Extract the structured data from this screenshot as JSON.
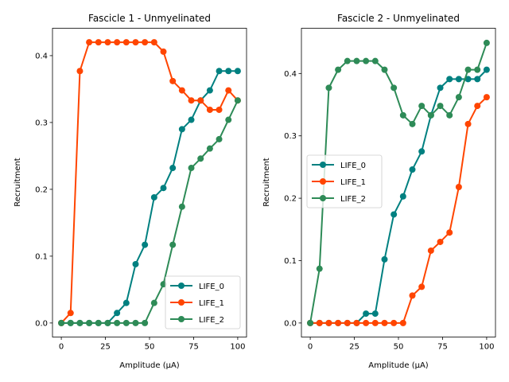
{
  "chart_data": [
    {
      "type": "line",
      "title": "Fascicle 1 - Unmyelinated",
      "xlabel": "Amplitude (µA)",
      "ylabel": "Recruitment",
      "xlim": [
        -5,
        105
      ],
      "ylim": [
        -0.021,
        0.441
      ],
      "xticks": [
        0,
        25,
        50,
        75,
        100
      ],
      "yticks": [
        0.0,
        0.1,
        0.2,
        0.3,
        0.4
      ],
      "ytick_labels": [
        "0.0",
        "0.1",
        "0.2",
        "0.3",
        "0.4"
      ],
      "grid": false,
      "legend_position": "bottom-right",
      "x": [
        0,
        5.26,
        10.53,
        15.79,
        21.05,
        26.32,
        31.58,
        36.84,
        42.11,
        47.37,
        52.63,
        57.89,
        63.16,
        68.42,
        73.68,
        78.95,
        84.21,
        89.47,
        94.74,
        100
      ],
      "series": [
        {
          "name": "LIFE_0",
          "color": "#008080",
          "values": [
            0,
            0,
            0,
            0,
            0,
            0,
            0.015,
            0.03,
            0.088,
            0.117,
            0.188,
            0.202,
            0.232,
            0.29,
            0.304,
            0.333,
            0.348,
            0.377,
            0.377,
            0.377
          ]
        },
        {
          "name": "LIFE_1",
          "color": "#ff4500",
          "values": [
            0,
            0.015,
            0.377,
            0.42,
            0.42,
            0.42,
            0.42,
            0.42,
            0.42,
            0.42,
            0.42,
            0.406,
            0.362,
            0.348,
            0.333,
            0.333,
            0.319,
            0.319,
            0.348,
            0.333
          ]
        },
        {
          "name": "LIFE_2",
          "color": "#2e8b57",
          "values": [
            0,
            0,
            0,
            0,
            0,
            0,
            0,
            0,
            0,
            0,
            0.03,
            0.058,
            0.117,
            0.174,
            0.232,
            0.246,
            0.261,
            0.275,
            0.304,
            0.333
          ]
        }
      ]
    },
    {
      "type": "line",
      "title": "Fascicle 2 - Unmyelinated",
      "xlabel": "Amplitude (µA)",
      "ylabel": "Recruitment",
      "xlim": [
        -5,
        105
      ],
      "ylim": [
        -0.0225,
        0.4725
      ],
      "xticks": [
        0,
        25,
        50,
        75,
        100
      ],
      "yticks": [
        0.0,
        0.1,
        0.2,
        0.3,
        0.4
      ],
      "ytick_labels": [
        "0.0",
        "0.1",
        "0.2",
        "0.3",
        "0.4"
      ],
      "grid": false,
      "legend_position": "center-left",
      "x": [
        0,
        5.26,
        10.53,
        15.79,
        21.05,
        26.32,
        31.58,
        36.84,
        42.11,
        47.37,
        52.63,
        57.89,
        63.16,
        68.42,
        73.68,
        78.95,
        84.21,
        89.47,
        94.74,
        100
      ],
      "series": [
        {
          "name": "LIFE_0",
          "color": "#008080",
          "values": [
            0,
            0,
            0,
            0,
            0,
            0,
            0.015,
            0.015,
            0.102,
            0.174,
            0.203,
            0.246,
            0.275,
            0.333,
            0.377,
            0.391,
            0.391,
            0.391,
            0.391,
            0.406
          ]
        },
        {
          "name": "LIFE_1",
          "color": "#ff4500",
          "values": [
            0,
            0,
            0,
            0,
            0,
            0,
            0,
            0,
            0,
            0,
            0,
            0.044,
            0.058,
            0.116,
            0.13,
            0.145,
            0.218,
            0.319,
            0.348,
            0.362
          ]
        },
        {
          "name": "LIFE_2",
          "color": "#2e8b57",
          "values": [
            0,
            0.087,
            0.377,
            0.406,
            0.42,
            0.42,
            0.42,
            0.42,
            0.406,
            0.377,
            0.333,
            0.319,
            0.348,
            0.333,
            0.348,
            0.333,
            0.362,
            0.406,
            0.406,
            0.449
          ]
        }
      ]
    }
  ]
}
